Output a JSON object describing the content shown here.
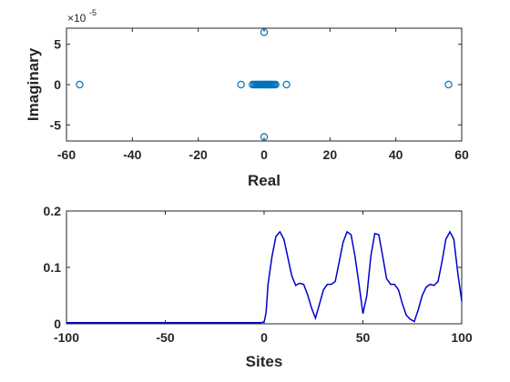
{
  "chart_data": [
    {
      "type": "scatter",
      "xlabel": "Real",
      "ylabel": "Imaginary",
      "exponent_base": "×10",
      "exponent_power": "-5",
      "xlim": [
        -60,
        60
      ],
      "ylim": [
        -7,
        7
      ],
      "xticks": [
        -60,
        -40,
        -20,
        0,
        20,
        40,
        60
      ],
      "xtick_labels": [
        "-60",
        "-40",
        "-20",
        "0",
        "20",
        "40",
        "60"
      ],
      "yticks": [
        -5,
        0,
        5
      ],
      "ytick_labels": [
        "-5",
        "0",
        "5"
      ],
      "marker_color": "#0072bd",
      "points": [
        {
          "x": -56,
          "y": 0
        },
        {
          "x": 56,
          "y": 0
        },
        {
          "x": 0,
          "y": 6.5
        },
        {
          "x": 0,
          "y": -6.5
        },
        {
          "x": -7,
          "y": 0
        },
        {
          "x": 6.8,
          "y": 0
        },
        {
          "x": -3.5,
          "y": 0
        },
        {
          "x": -3.0,
          "y": 0
        },
        {
          "x": -2.6,
          "y": 0
        },
        {
          "x": -2.2,
          "y": 0
        },
        {
          "x": -1.9,
          "y": 0
        },
        {
          "x": -1.6,
          "y": 0
        },
        {
          "x": -1.3,
          "y": 0
        },
        {
          "x": -1.0,
          "y": 0
        },
        {
          "x": -0.7,
          "y": 0
        },
        {
          "x": -0.4,
          "y": 0
        },
        {
          "x": -0.1,
          "y": 0
        },
        {
          "x": 0.2,
          "y": 0
        },
        {
          "x": 0.5,
          "y": 0
        },
        {
          "x": 0.8,
          "y": 0
        },
        {
          "x": 1.1,
          "y": 0
        },
        {
          "x": 1.4,
          "y": 0
        },
        {
          "x": 1.7,
          "y": 0
        },
        {
          "x": 2.0,
          "y": 0
        },
        {
          "x": 2.3,
          "y": 0
        },
        {
          "x": 2.7,
          "y": 0
        },
        {
          "x": 3.1,
          "y": 0
        },
        {
          "x": 3.5,
          "y": 0
        }
      ]
    },
    {
      "type": "line",
      "xlabel": "Sites",
      "ylabel": "",
      "xlim": [
        -100,
        100
      ],
      "ylim": [
        0,
        0.2
      ],
      "xticks": [
        -100,
        -50,
        0,
        50,
        100
      ],
      "xtick_labels": [
        "-100",
        "-50",
        "0",
        "50",
        "100"
      ],
      "yticks": [
        0,
        0.1,
        0.2
      ],
      "ytick_labels": [
        "0",
        "0.1",
        "0.2"
      ],
      "line_color": "#0000cc",
      "x": [
        -100,
        -60,
        -20,
        -2,
        0,
        1,
        2,
        4,
        6,
        8,
        10,
        12,
        14,
        16,
        18,
        20,
        22,
        24,
        26,
        28,
        30,
        32,
        34,
        36,
        38,
        40,
        42,
        44,
        46,
        48,
        50,
        52,
        54,
        56,
        58,
        60,
        62,
        64,
        66,
        68,
        70,
        72,
        74,
        76,
        78,
        80,
        82,
        84,
        86,
        88,
        90,
        92,
        94,
        96,
        98,
        100
      ],
      "y": [
        0.002,
        0.002,
        0.002,
        0.002,
        0.003,
        0.02,
        0.07,
        0.12,
        0.155,
        0.163,
        0.15,
        0.118,
        0.085,
        0.068,
        0.072,
        0.07,
        0.052,
        0.028,
        0.01,
        0.035,
        0.06,
        0.07,
        0.07,
        0.075,
        0.11,
        0.145,
        0.163,
        0.158,
        0.12,
        0.07,
        0.018,
        0.05,
        0.12,
        0.16,
        0.158,
        0.12,
        0.08,
        0.07,
        0.07,
        0.06,
        0.035,
        0.015,
        0.008,
        0.004,
        0.025,
        0.05,
        0.065,
        0.07,
        0.068,
        0.075,
        0.11,
        0.15,
        0.163,
        0.15,
        0.09,
        0.04
      ]
    }
  ]
}
